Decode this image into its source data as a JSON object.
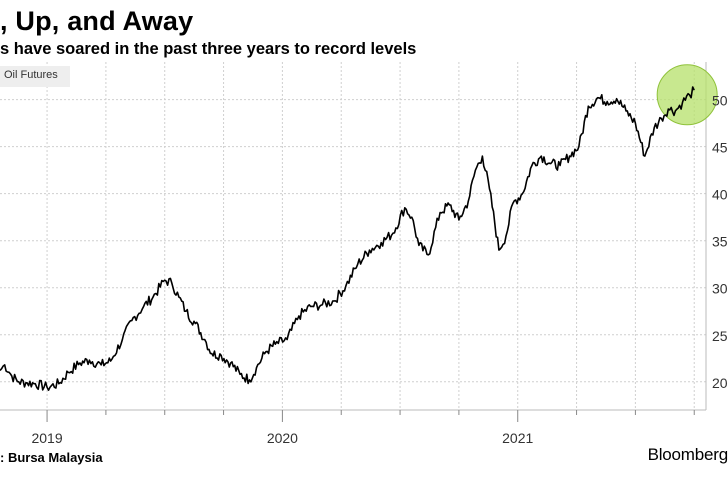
{
  "header": {
    "title": ", Up, and Away",
    "subtitle": "s have soared in the past three years to record levels"
  },
  "footer": {
    "source": ": Bursa Malaysia",
    "brand": "Bloomberg"
  },
  "colors": {
    "line": "#000000",
    "highlight_fill": "#b5e06a",
    "highlight_stroke": "#8fc23a",
    "grid": "#cfcfcf",
    "legend_bg": "#eeeeee"
  },
  "chart_data": {
    "type": "line",
    "title": ", Up, and Away",
    "subtitle": "s have soared in the past three years to record levels",
    "legend": [
      " Oil Futures"
    ],
    "xlabel": "",
    "ylabel": "",
    "xlim": [
      2018.8,
      2021.8
    ],
    "ylim": [
      17,
      54
    ],
    "x_ticks": [
      {
        "label": "2019",
        "value": 2019.0
      },
      {
        "label": "2020",
        "value": 2020.0
      },
      {
        "label": "2021",
        "value": 2021.0
      }
    ],
    "y_ticks": [
      {
        "label": "20",
        "value": 20
      },
      {
        "label": "25",
        "value": 25
      },
      {
        "label": "30",
        "value": 30
      },
      {
        "label": "35",
        "value": 35
      },
      {
        "label": "40",
        "value": 40
      },
      {
        "label": "45",
        "value": 45
      },
      {
        "label": "50",
        "value": 50
      }
    ],
    "highlight": {
      "x": 2021.72,
      "y": 50.3
    },
    "series": [
      {
        "name": "Oil Futures",
        "x": [
          2018.8,
          2018.82,
          2018.85,
          2018.88,
          2018.91,
          2018.95,
          2019.0,
          2019.05,
          2019.09,
          2019.14,
          2019.18,
          2019.23,
          2019.27,
          2019.32,
          2019.36,
          2019.41,
          2019.45,
          2019.5,
          2019.53,
          2019.56,
          2019.59,
          2019.63,
          2019.67,
          2019.7,
          2019.74,
          2019.78,
          2019.82,
          2019.86,
          2019.89,
          2019.93,
          2019.97,
          2020.02,
          2020.07,
          2020.12,
          2020.17,
          2020.22,
          2020.27,
          2020.32,
          2020.37,
          2020.42,
          2020.47,
          2020.52,
          2020.55,
          2020.58,
          2020.62,
          2020.67,
          2020.71,
          2020.75,
          2020.79,
          2020.82,
          2020.85,
          2020.88,
          2020.92,
          2020.95,
          2020.98,
          2021.02,
          2021.06,
          2021.1,
          2021.14,
          2021.18,
          2021.22,
          2021.26,
          2021.3,
          2021.34,
          2021.38,
          2021.42,
          2021.46,
          2021.5,
          2021.54,
          2021.58,
          2021.61,
          2021.64,
          2021.67,
          2021.7,
          2021.73,
          2021.75
        ],
        "y": [
          21.2,
          21.8,
          20.6,
          20.0,
          19.9,
          19.8,
          19.4,
          19.8,
          21.0,
          22.0,
          22.3,
          21.8,
          22.2,
          24.5,
          26.5,
          28.0,
          29.0,
          30.8,
          30.5,
          29.0,
          27.5,
          26.2,
          24.5,
          23.0,
          22.8,
          22.0,
          20.8,
          20.2,
          21.5,
          23.2,
          24.0,
          24.5,
          27.0,
          28.0,
          28.2,
          28.6,
          30.2,
          32.5,
          34.0,
          34.8,
          35.8,
          38.5,
          37.5,
          34.5,
          33.5,
          38.0,
          38.8,
          37.2,
          39.2,
          42.5,
          44.0,
          40.5,
          34.0,
          35.5,
          39.0,
          40.0,
          43.0,
          44.0,
          43.2,
          43.0,
          44.0,
          45.0,
          49.3,
          50.2,
          49.8,
          50.1,
          48.8,
          47.5,
          44.0,
          47.0,
          48.0,
          49.0,
          48.8,
          49.7,
          50.5,
          51.0
        ]
      }
    ]
  }
}
